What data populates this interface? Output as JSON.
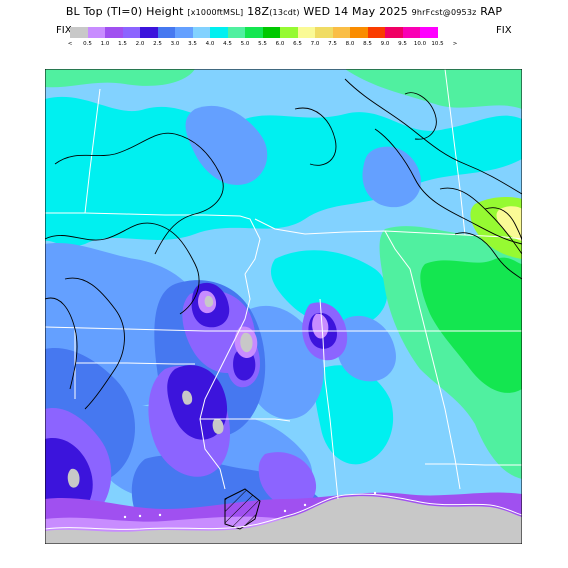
{
  "header": {
    "title_main": "BL Top (TI=0) Height",
    "title_units": "[x1000ftMSL]",
    "title_time": "18Z",
    "title_time_local": "(13cdt)",
    "title_date": "WED 14 May 2025",
    "title_forecast": "9hrFcst@0953z",
    "title_model": "RAP"
  },
  "legend": {
    "fix_left": "FIX",
    "fix_right": "FIX",
    "lt": "<",
    "gt": ">",
    "ticks": [
      "0.5",
      "1.0",
      "1.5",
      "2.0",
      "2.5",
      "3.0",
      "3.5",
      "4.0",
      "4.5",
      "5.0",
      "5.5",
      "6.0",
      "6.5",
      "7.0",
      "7.5",
      "8.0",
      "8.5",
      "9.0",
      "9.5",
      "10.0",
      "10.5"
    ],
    "colors": [
      "#c8c8c8",
      "#c88cff",
      "#a050f0",
      "#8c64ff",
      "#3c14dc",
      "#4678f0",
      "#64a0ff",
      "#82d2ff",
      "#00f0f0",
      "#50f0a0",
      "#14e650",
      "#00c800",
      "#96fa32",
      "#fafa96",
      "#f0dc64",
      "#fabe46",
      "#fa8c00",
      "#fa3c00",
      "#f00064",
      "#fa00b4",
      "#ff00ff",
      "#ffffff"
    ]
  },
  "map": {
    "colors": {
      "lightgray": "#c8c8c8",
      "lavender": "#c88cff",
      "purple": "#a050f0",
      "violet": "#8c64ff",
      "indigo": "#3c14dc",
      "blue": "#4678f0",
      "sky": "#64a0ff",
      "lightblue": "#82d2ff",
      "cyan": "#00f0f0",
      "mint": "#50f0a0",
      "green": "#14e650",
      "darkgreen": "#00c800",
      "lime": "#96fa32",
      "paleyellow": "#fafa96"
    }
  }
}
